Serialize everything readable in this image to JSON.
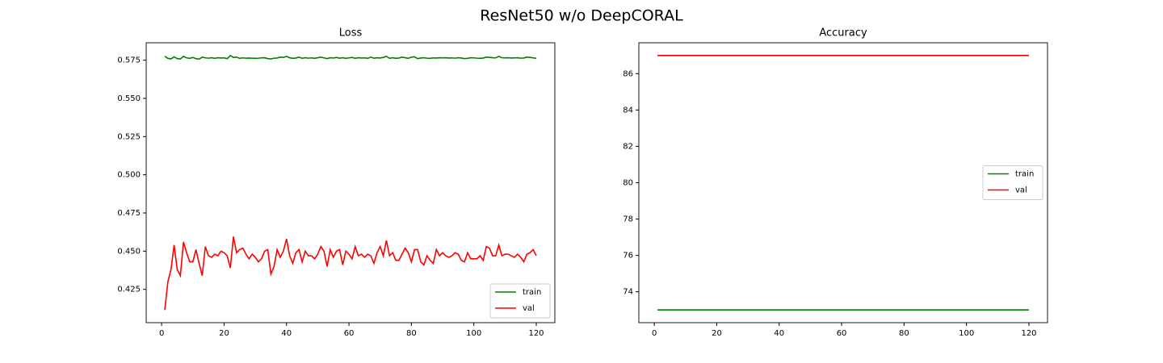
{
  "title": "ResNet50 w/o DeepCORAL",
  "chart_data": [
    {
      "type": "line",
      "title": "Loss",
      "x": [
        1,
        2,
        3,
        4,
        5,
        6,
        7,
        8,
        9,
        10,
        11,
        12,
        13,
        14,
        15,
        16,
        17,
        18,
        19,
        20,
        21,
        22,
        23,
        24,
        25,
        26,
        27,
        28,
        29,
        30,
        31,
        32,
        33,
        34,
        35,
        36,
        37,
        38,
        39,
        40,
        41,
        42,
        43,
        44,
        45,
        46,
        47,
        48,
        49,
        50,
        51,
        52,
        53,
        54,
        55,
        56,
        57,
        58,
        59,
        60,
        61,
        62,
        63,
        64,
        65,
        66,
        67,
        68,
        69,
        70,
        71,
        72,
        73,
        74,
        75,
        76,
        77,
        78,
        79,
        80,
        81,
        82,
        83,
        84,
        85,
        86,
        87,
        88,
        89,
        90,
        91,
        92,
        93,
        94,
        95,
        96,
        97,
        98,
        99,
        100,
        101,
        102,
        103,
        104,
        105,
        106,
        107,
        108,
        109,
        110,
        111,
        112,
        113,
        114,
        115,
        116,
        117,
        118,
        119,
        120
      ],
      "series": [
        {
          "name": "train",
          "color": "#008000",
          "values": [
            0.5775,
            0.5762,
            0.5758,
            0.5772,
            0.576,
            0.5758,
            0.5775,
            0.5765,
            0.5762,
            0.5768,
            0.576,
            0.5757,
            0.577,
            0.5765,
            0.5763,
            0.5766,
            0.5762,
            0.5766,
            0.5764,
            0.5765,
            0.576,
            0.578,
            0.5768,
            0.577,
            0.5762,
            0.5765,
            0.5763,
            0.5764,
            0.5763,
            0.5762,
            0.5763,
            0.5765,
            0.5766,
            0.576,
            0.5758,
            0.5763,
            0.5764,
            0.577,
            0.5768,
            0.5775,
            0.5766,
            0.5762,
            0.5764,
            0.577,
            0.5762,
            0.5766,
            0.5763,
            0.5765,
            0.5762,
            0.5766,
            0.577,
            0.5765,
            0.576,
            0.5766,
            0.5764,
            0.5768,
            0.5763,
            0.5766,
            0.5762,
            0.5765,
            0.5768,
            0.5762,
            0.5766,
            0.5764,
            0.5765,
            0.5762,
            0.577,
            0.5763,
            0.5766,
            0.5764,
            0.5768,
            0.5775,
            0.5762,
            0.5766,
            0.5762,
            0.5764,
            0.577,
            0.5766,
            0.5762,
            0.577,
            0.5772,
            0.576,
            0.5764,
            0.5766,
            0.5763,
            0.5762,
            0.5765,
            0.5764,
            0.5766,
            0.5765,
            0.5766,
            0.5764,
            0.5765,
            0.5763,
            0.5766,
            0.5764,
            0.576,
            0.5762,
            0.5766,
            0.5765,
            0.5763,
            0.5762,
            0.5764,
            0.577,
            0.5768,
            0.5766,
            0.5765,
            0.5775,
            0.5766,
            0.5765,
            0.5766,
            0.5764,
            0.5765,
            0.5766,
            0.5763,
            0.5764,
            0.577,
            0.5768,
            0.5765,
            0.5762
          ]
        },
        {
          "name": "val",
          "color": "#ff0000",
          "values": [
            0.4115,
            0.43,
            0.438,
            0.454,
            0.438,
            0.434,
            0.456,
            0.449,
            0.443,
            0.443,
            0.451,
            0.442,
            0.434,
            0.453,
            0.447,
            0.446,
            0.448,
            0.447,
            0.45,
            0.449,
            0.447,
            0.439,
            0.4595,
            0.449,
            0.451,
            0.452,
            0.448,
            0.445,
            0.448,
            0.446,
            0.443,
            0.445,
            0.45,
            0.451,
            0.435,
            0.44,
            0.451,
            0.446,
            0.45,
            0.458,
            0.447,
            0.442,
            0.449,
            0.451,
            0.443,
            0.45,
            0.447,
            0.447,
            0.445,
            0.448,
            0.453,
            0.45,
            0.44,
            0.451,
            0.446,
            0.45,
            0.451,
            0.441,
            0.45,
            0.448,
            0.445,
            0.453,
            0.447,
            0.448,
            0.446,
            0.448,
            0.447,
            0.442,
            0.449,
            0.453,
            0.447,
            0.457,
            0.447,
            0.449,
            0.444,
            0.444,
            0.448,
            0.452,
            0.449,
            0.443,
            0.451,
            0.451,
            0.443,
            0.441,
            0.447,
            0.444,
            0.442,
            0.451,
            0.447,
            0.449,
            0.447,
            0.446,
            0.447,
            0.449,
            0.448,
            0.444,
            0.443,
            0.449,
            0.445,
            0.445,
            0.445,
            0.447,
            0.444,
            0.453,
            0.452,
            0.447,
            0.447,
            0.454,
            0.447,
            0.448,
            0.448,
            0.447,
            0.446,
            0.448,
            0.446,
            0.443,
            0.448,
            0.449,
            0.451,
            0.447
          ]
        }
      ],
      "xlim": [
        -4.95,
        125.95
      ],
      "xticks": [
        0,
        20,
        40,
        60,
        80,
        100,
        120
      ],
      "ylim": [
        0.4032,
        0.5864
      ],
      "yticks": [
        0.425,
        {
          "value": 0.45,
          "label": "0.450"
        },
        0.475,
        {
          "value": 0.5,
          "label": "0.500"
        },
        0.525,
        {
          "value": 0.55,
          "label": "0.550"
        },
        0.575
      ],
      "legend": "lower right"
    },
    {
      "type": "line",
      "title": "Accuracy",
      "x": [
        1,
        2,
        3,
        4,
        5,
        6,
        7,
        8,
        9,
        10,
        11,
        12,
        13,
        14,
        15,
        16,
        17,
        18,
        19,
        20,
        21,
        22,
        23,
        24,
        25,
        26,
        27,
        28,
        29,
        30,
        31,
        32,
        33,
        34,
        35,
        36,
        37,
        38,
        39,
        40,
        41,
        42,
        43,
        44,
        45,
        46,
        47,
        48,
        49,
        50,
        51,
        52,
        53,
        54,
        55,
        56,
        57,
        58,
        59,
        60,
        61,
        62,
        63,
        64,
        65,
        66,
        67,
        68,
        69,
        70,
        71,
        72,
        73,
        74,
        75,
        76,
        77,
        78,
        79,
        80,
        81,
        82,
        83,
        84,
        85,
        86,
        87,
        88,
        89,
        90,
        91,
        92,
        93,
        94,
        95,
        96,
        97,
        98,
        99,
        100,
        101,
        102,
        103,
        104,
        105,
        106,
        107,
        108,
        109,
        110,
        111,
        112,
        113,
        114,
        115,
        116,
        117,
        118,
        119,
        120
      ],
      "series": [
        {
          "name": "train",
          "color": "#008000",
          "values": [
            73,
            73,
            73,
            73,
            73,
            73,
            73,
            73,
            73,
            73,
            73,
            73,
            73,
            73,
            73,
            73,
            73,
            73,
            73,
            73,
            73,
            73,
            73,
            73,
            73,
            73,
            73,
            73,
            73,
            73,
            73,
            73,
            73,
            73,
            73,
            73,
            73,
            73,
            73,
            73,
            73,
            73,
            73,
            73,
            73,
            73,
            73,
            73,
            73,
            73,
            73,
            73,
            73,
            73,
            73,
            73,
            73,
            73,
            73,
            73,
            73,
            73,
            73,
            73,
            73,
            73,
            73,
            73,
            73,
            73,
            73,
            73,
            73,
            73,
            73,
            73,
            73,
            73,
            73,
            73,
            73,
            73,
            73,
            73,
            73,
            73,
            73,
            73,
            73,
            73,
            73,
            73,
            73,
            73,
            73,
            73,
            73,
            73,
            73,
            73,
            73,
            73,
            73,
            73,
            73,
            73,
            73,
            73,
            73,
            73,
            73,
            73,
            73,
            73,
            73,
            73,
            73,
            73,
            73,
            73
          ]
        },
        {
          "name": "val",
          "color": "#ff0000",
          "values": [
            87,
            87,
            87,
            87,
            87,
            87,
            87,
            87,
            87,
            87,
            87,
            87,
            87,
            87,
            87,
            87,
            87,
            87,
            87,
            87,
            87,
            87,
            87,
            87,
            87,
            87,
            87,
            87,
            87,
            87,
            87,
            87,
            87,
            87,
            87,
            87,
            87,
            87,
            87,
            87,
            87,
            87,
            87,
            87,
            87,
            87,
            87,
            87,
            87,
            87,
            87,
            87,
            87,
            87,
            87,
            87,
            87,
            87,
            87,
            87,
            87,
            87,
            87,
            87,
            87,
            87,
            87,
            87,
            87,
            87,
            87,
            87,
            87,
            87,
            87,
            87,
            87,
            87,
            87,
            87,
            87,
            87,
            87,
            87,
            87,
            87,
            87,
            87,
            87,
            87,
            87,
            87,
            87,
            87,
            87,
            87,
            87,
            87,
            87,
            87,
            87,
            87,
            87,
            87,
            87,
            87,
            87,
            87,
            87,
            87,
            87,
            87,
            87,
            87,
            87,
            87,
            87,
            87,
            87,
            87
          ]
        }
      ],
      "xlim": [
        -4.95,
        125.95
      ],
      "xticks": [
        0,
        20,
        40,
        60,
        80,
        100,
        120
      ],
      "ylim": [
        72.3,
        87.7
      ],
      "yticks": [
        74,
        76,
        78,
        80,
        82,
        84,
        86
      ],
      "legend": "center right"
    }
  ]
}
